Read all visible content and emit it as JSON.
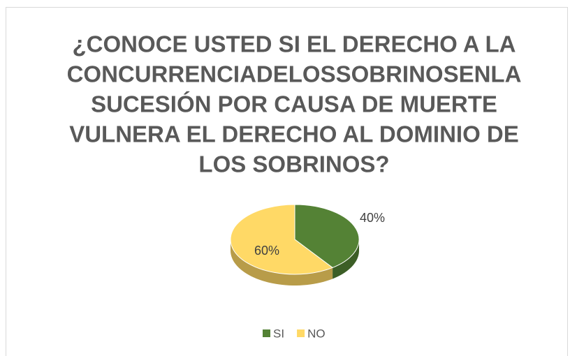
{
  "chart_data": {
    "type": "pie",
    "title": [
      "¿CONOCE USTED SI EL DERECHO A LA",
      "CONCURRENCIADELOSSOBRINOSENLA",
      "SUCESIÓN POR CAUSA DE MUERTE",
      "VULNERA EL DERECHO AL DOMINIO DE",
      "LOS SOBRINOS?"
    ],
    "categories": [
      "SI",
      "NO"
    ],
    "values": [
      40,
      60
    ],
    "value_labels": [
      "40%",
      "60%"
    ],
    "colors": [
      "#548235",
      "#ffd966"
    ],
    "legend": "bottom"
  }
}
